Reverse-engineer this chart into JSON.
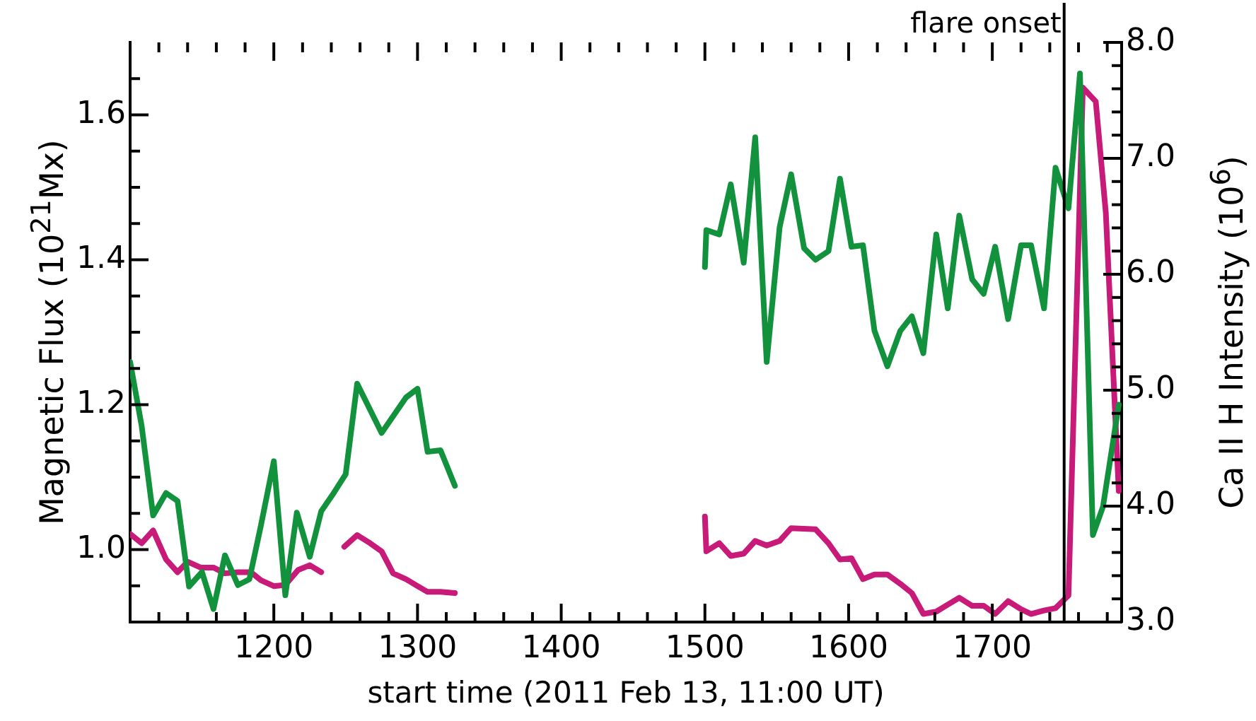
{
  "chart_data": {
    "type": "line",
    "xlabel": "start time (2011 Feb 13, 11:00 UT)",
    "ylabel": "Magnetic Flux (10$^{21}$Mx)",
    "y2label": "Ca II H Intensity (10$^{6}$)",
    "xlim": [
      1100,
      1790
    ],
    "xticks": [
      {
        "value": 1120,
        "label": null
      },
      {
        "value": 1140,
        "label": null
      },
      {
        "value": 1160,
        "label": null
      },
      {
        "value": 1180,
        "label": null
      },
      1200,
      {
        "value": 1220,
        "label": null
      },
      {
        "value": 1240,
        "label": null
      },
      {
        "value": 1260,
        "label": null
      },
      {
        "value": 1280,
        "label": null
      },
      1300,
      {
        "value": 1320,
        "label": null
      },
      {
        "value": 1340,
        "label": null
      },
      {
        "value": 1360,
        "label": null
      },
      {
        "value": 1380,
        "label": null
      },
      1400,
      {
        "value": 1420,
        "label": null
      },
      {
        "value": 1440,
        "label": null
      },
      {
        "value": 1460,
        "label": null
      },
      {
        "value": 1480,
        "label": null
      },
      1500,
      {
        "value": 1520,
        "label": null
      },
      {
        "value": 1540,
        "label": null
      },
      {
        "value": 1560,
        "label": null
      },
      {
        "value": 1580,
        "label": null
      },
      1600,
      {
        "value": 1620,
        "label": null
      },
      {
        "value": 1640,
        "label": null
      },
      {
        "value": 1660,
        "label": null
      },
      {
        "value": 1680,
        "label": null
      },
      1700,
      {
        "value": 1720,
        "label": null
      },
      {
        "value": 1740,
        "label": null
      },
      {
        "value": 1760,
        "label": null
      },
      {
        "value": 1780,
        "label": null
      }
    ],
    "ylim": [
      0.9,
      1.7
    ],
    "yticks": [
      {
        "value": 0.95,
        "label": null
      },
      {
        "value": 1,
        "label": "1.0"
      },
      {
        "value": 1.05,
        "label": null
      },
      {
        "value": 1.1,
        "label": null
      },
      {
        "value": 1.15,
        "label": null
      },
      1.2,
      {
        "value": 1.25,
        "label": null
      },
      {
        "value": 1.3,
        "label": null
      },
      {
        "value": 1.35,
        "label": null
      },
      1.4,
      {
        "value": 1.45,
        "label": null
      },
      {
        "value": 1.5,
        "label": null
      },
      {
        "value": 1.55,
        "label": null
      },
      1.6,
      {
        "value": 1.65,
        "label": null
      }
    ],
    "y2lim": [
      3,
      8
    ],
    "y2ticks": [
      {
        "value": 3,
        "label": "3.0"
      },
      {
        "value": 3.2,
        "label": null
      },
      {
        "value": 3.4,
        "label": null
      },
      {
        "value": 3.6,
        "label": null
      },
      {
        "value": 3.8,
        "label": null
      },
      {
        "value": 4,
        "label": "4.0"
      },
      {
        "value": 4.2,
        "label": null
      },
      {
        "value": 4.4,
        "label": null
      },
      {
        "value": 4.6,
        "label": null
      },
      {
        "value": 4.8,
        "label": null
      },
      {
        "value": 5,
        "label": "5.0"
      },
      {
        "value": 5.2,
        "label": null
      },
      {
        "value": 5.4,
        "label": null
      },
      {
        "value": 5.6,
        "label": null
      },
      {
        "value": 5.8,
        "label": null
      },
      {
        "value": 6,
        "label": "6.0"
      },
      {
        "value": 6.2,
        "label": null
      },
      {
        "value": 6.4,
        "label": null
      },
      {
        "value": 6.6,
        "label": null
      },
      {
        "value": 6.8,
        "label": null
      },
      {
        "value": 7,
        "label": "7.0"
      },
      {
        "value": 7.2,
        "label": null
      },
      {
        "value": 7.4,
        "label": null
      },
      {
        "value": 7.6,
        "label": null
      },
      {
        "value": 7.8,
        "label": null
      },
      {
        "value": 8,
        "label": "8.0"
      }
    ],
    "grid": false,
    "legend": false,
    "marker": "none",
    "line_style": "solid",
    "ref_lines": [
      {
        "axis": "x",
        "value": 1750,
        "label": "flare onset",
        "color": "#000000"
      }
    ],
    "series": [
      {
        "color": "#13923e",
        "x": [
          1100,
          1108,
          1116,
          1125,
          1133,
          1141,
          1150,
          1158,
          1166,
          1175,
          1183,
          1191,
          1200,
          1208,
          1216,
          1225,
          1233,
          1241,
          1250,
          1258,
          1275,
          1292,
          1300,
          1307,
          1316,
          1326,
          1400,
          1500,
          1501,
          1510,
          1518,
          1527,
          1535,
          1543,
          1552,
          1560,
          1569,
          1577,
          1586,
          1594,
          1602,
          1610,
          1618,
          1627,
          1636,
          1644,
          1652,
          1661,
          1669,
          1677,
          1686,
          1694,
          1702,
          1711,
          1720,
          1727,
          1736,
          1744,
          1753,
          1761,
          1770,
          1777,
          1788
        ],
        "values": [
          1.259,
          1.171,
          1.047,
          1.078,
          1.067,
          0.949,
          0.969,
          0.918,
          0.992,
          0.951,
          0.959,
          1.033,
          1.122,
          0.937,
          1.051,
          0.99,
          1.053,
          1.076,
          1.104,
          1.229,
          1.161,
          1.21,
          1.222,
          1.135,
          1.137,
          1.088,
          null,
          1.39,
          1.441,
          1.435,
          1.504,
          1.396,
          1.569,
          1.259,
          1.445,
          1.518,
          1.416,
          1.4,
          1.412,
          1.512,
          1.418,
          1.42,
          1.302,
          1.253,
          1.302,
          1.322,
          1.271,
          1.435,
          1.333,
          1.461,
          1.373,
          1.353,
          1.418,
          1.318,
          1.42,
          1.42,
          1.333,
          1.527,
          1.471,
          1.657,
          1.02,
          1.059,
          1.2
        ]
      },
      {
        "color": "#c81a78",
        "axis": "y2",
        "x": [
          1100,
          1108,
          1116,
          1125,
          1133,
          1140,
          1149,
          1158,
          1166,
          1175,
          1184,
          1191,
          1200,
          1208,
          1217,
          1225,
          1233,
          1240,
          1249,
          1258,
          1267,
          1275,
          1283,
          1292,
          1300,
          1307,
          1316,
          1326,
          1400,
          1500,
          1501,
          1510,
          1518,
          1527,
          1535,
          1543,
          1552,
          1560,
          1577,
          1586,
          1594,
          1602,
          1610,
          1618,
          1627,
          1636,
          1644,
          1652,
          1661,
          1669,
          1677,
          1686,
          1694,
          1702,
          1711,
          1720,
          1727,
          1736,
          1744,
          1753,
          1763,
          1772,
          1779,
          1788
        ],
        "values": [
          3.76,
          3.68,
          3.79,
          3.54,
          3.43,
          3.52,
          3.47,
          3.47,
          3.42,
          3.43,
          3.43,
          3.36,
          3.31,
          3.32,
          3.45,
          3.49,
          3.43,
          null,
          3.65,
          3.75,
          3.68,
          3.61,
          3.42,
          3.37,
          3.31,
          3.26,
          3.26,
          3.25,
          null,
          3.91,
          3.61,
          3.68,
          3.57,
          3.59,
          3.7,
          3.66,
          3.7,
          3.81,
          3.8,
          3.68,
          3.54,
          3.55,
          3.37,
          3.41,
          3.41,
          3.33,
          3.25,
          3.07,
          3.09,
          3.15,
          3.21,
          3.14,
          3.14,
          3.07,
          3.18,
          3.11,
          3.07,
          3.1,
          3.12,
          3.23,
          7.61,
          7.49,
          6.53,
          4.13
        ]
      }
    ]
  }
}
